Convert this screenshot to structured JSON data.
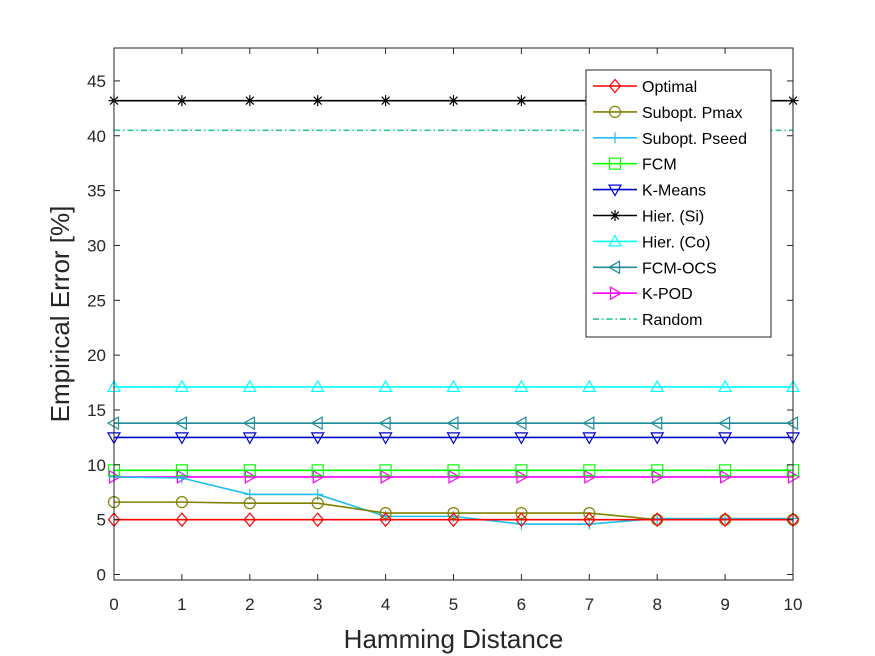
{
  "chart_data": {
    "type": "line",
    "title": "",
    "xlabel": "Hamming Distance",
    "ylabel": "Empirical Error [%]",
    "xlim": [
      0,
      10
    ],
    "ylim": [
      -0.5,
      48
    ],
    "xticks": [
      0,
      1,
      2,
      3,
      4,
      5,
      6,
      7,
      8,
      9,
      10
    ],
    "yticks": [
      0,
      5,
      10,
      15,
      20,
      25,
      30,
      35,
      40,
      45
    ],
    "grid": false,
    "legend_position": "top-right",
    "x": [
      0,
      1,
      2,
      3,
      4,
      5,
      6,
      7,
      8,
      9,
      10
    ],
    "series": [
      {
        "name": "Optimal",
        "color": "#ff0000",
        "marker": "diamond",
        "dashed": false,
        "values": [
          5.0,
          5.0,
          5.0,
          5.0,
          5.0,
          5.0,
          5.0,
          5.0,
          5.0,
          5.0,
          5.0
        ]
      },
      {
        "name": "Subopt. Pmax",
        "color": "#808000",
        "marker": "circle",
        "dashed": false,
        "values": [
          6.6,
          6.6,
          6.5,
          6.5,
          5.6,
          5.6,
          5.6,
          5.6,
          5.0,
          5.0,
          5.0
        ]
      },
      {
        "name": "Subopt. Pseed",
        "color": "#1ebef0",
        "marker": "plus",
        "dashed": false,
        "values": [
          8.9,
          8.8,
          7.3,
          7.3,
          5.3,
          5.3,
          4.6,
          4.6,
          5.1,
          5.1,
          5.1
        ]
      },
      {
        "name": "FCM",
        "color": "#00ff00",
        "marker": "square",
        "dashed": false,
        "values": [
          9.5,
          9.5,
          9.5,
          9.5,
          9.5,
          9.5,
          9.5,
          9.5,
          9.5,
          9.5,
          9.5
        ]
      },
      {
        "name": "K-Means",
        "color": "#0000cd",
        "marker": "triangle-down",
        "dashed": false,
        "values": [
          12.5,
          12.5,
          12.5,
          12.5,
          12.5,
          12.5,
          12.5,
          12.5,
          12.5,
          12.5,
          12.5
        ]
      },
      {
        "name": "Hier. (Si)",
        "color": "#000000",
        "marker": "asterisk",
        "dashed": false,
        "values": [
          43.2,
          43.2,
          43.2,
          43.2,
          43.2,
          43.2,
          43.2,
          43.2,
          43.2,
          43.2,
          43.2
        ]
      },
      {
        "name": "Hier. (Co)",
        "color": "#00ffff",
        "marker": "triangle-up",
        "dashed": false,
        "values": [
          17.1,
          17.1,
          17.1,
          17.1,
          17.1,
          17.1,
          17.1,
          17.1,
          17.1,
          17.1,
          17.1
        ]
      },
      {
        "name": "FCM-OCS",
        "color": "#1e8c96",
        "marker": "triangle-left",
        "dashed": false,
        "values": [
          13.8,
          13.8,
          13.8,
          13.8,
          13.8,
          13.8,
          13.8,
          13.8,
          13.8,
          13.8,
          13.8
        ]
      },
      {
        "name": "K-POD",
        "color": "#ff00ff",
        "marker": "triangle-right",
        "dashed": false,
        "values": [
          8.9,
          8.9,
          8.9,
          8.9,
          8.9,
          8.9,
          8.9,
          8.9,
          8.9,
          8.9,
          8.9
        ]
      },
      {
        "name": "Random",
        "color": "#28c88c",
        "marker": "none",
        "dashed": true,
        "values": [
          40.5,
          40.5,
          40.5,
          40.5,
          40.5,
          40.5,
          40.5,
          40.5,
          40.5,
          40.5,
          40.5
        ]
      }
    ]
  }
}
